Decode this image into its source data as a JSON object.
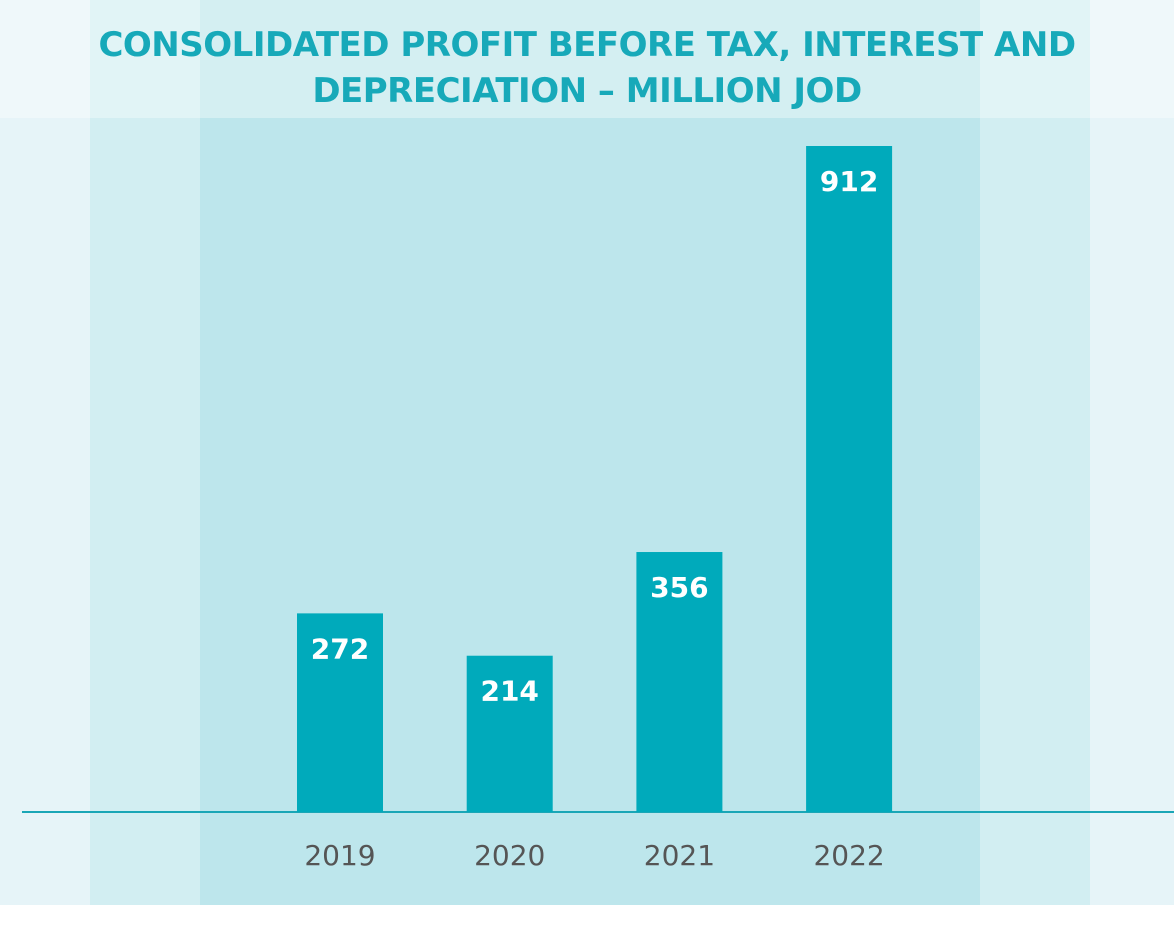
{
  "chart_data": {
    "type": "bar",
    "title": "CONSOLIDATED PROFIT BEFORE TAX, INTEREST AND DEPRECIATION – MILLION JOD",
    "categories": [
      "2019",
      "2020",
      "2021",
      "2022"
    ],
    "values": [
      272,
      214,
      356,
      912
    ],
    "color": "#00aabb"
  }
}
